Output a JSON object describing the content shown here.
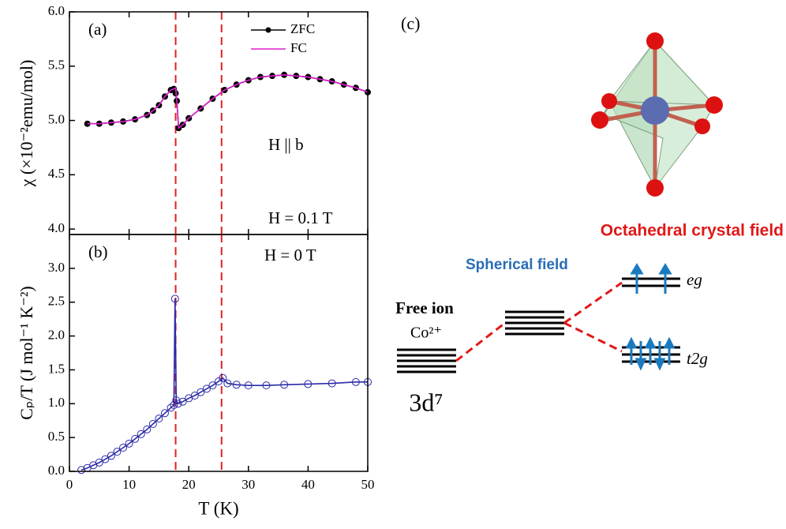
{
  "chart_data": [
    {
      "type": "line",
      "panel_label": "(a)",
      "y_label": "χ (×10⁻²emu/mol)",
      "annotations": [
        "H || b",
        "H = 0.1 T"
      ],
      "x": [
        3,
        5,
        7,
        9,
        11,
        13,
        14,
        15,
        16,
        17,
        17.5,
        17.8,
        18,
        18.3,
        19,
        20,
        22,
        24,
        26,
        28,
        30,
        32,
        34,
        36,
        38,
        40,
        42,
        44,
        46,
        48,
        50
      ],
      "series": [
        {
          "name": "ZFC",
          "color": "#000000",
          "marker": true,
          "values": [
            4.97,
            4.97,
            4.98,
            4.99,
            5.01,
            5.05,
            5.09,
            5.14,
            5.22,
            5.28,
            5.29,
            5.25,
            5.18,
            4.93,
            4.96,
            5.02,
            5.11,
            5.2,
            5.28,
            5.33,
            5.37,
            5.4,
            5.41,
            5.42,
            5.41,
            5.4,
            5.38,
            5.36,
            5.33,
            5.3,
            5.26
          ]
        },
        {
          "name": "FC",
          "color": "#e01fd0",
          "marker": false,
          "values": [
            4.97,
            4.97,
            4.98,
            4.99,
            5.01,
            5.05,
            5.09,
            5.14,
            5.22,
            5.28,
            5.29,
            5.3,
            5.18,
            4.93,
            4.96,
            5.02,
            5.11,
            5.2,
            5.28,
            5.33,
            5.37,
            5.4,
            5.41,
            5.42,
            5.41,
            5.4,
            5.38,
            5.36,
            5.33,
            5.3,
            5.26
          ]
        }
      ],
      "xlim": [
        0,
        50
      ],
      "xticks": [
        0,
        10,
        20,
        30,
        40,
        50
      ],
      "ylim": [
        3.95,
        6.0
      ],
      "yticks": [
        {
          "value": 4,
          "label": "4.0"
        },
        4.5,
        {
          "value": 5,
          "label": "5.0"
        },
        5.5,
        {
          "value": 6,
          "label": "6.0"
        }
      ],
      "vlines": [
        17.8,
        25.5
      ],
      "vline_color": "#e02020"
    },
    {
      "type": "scatter",
      "panel_label": "(b)",
      "y_label": "Cₚ/T (J mol⁻¹ K⁻²)",
      "x_label": "T (K)",
      "annotations": [
        "H = 0 T"
      ],
      "x": [
        2,
        3,
        4,
        5,
        6,
        7,
        8,
        9,
        10,
        11,
        12,
        13,
        14,
        15,
        16,
        17,
        17.5,
        17.7,
        17.9,
        18.2,
        19,
        20,
        21,
        22,
        23,
        24,
        25,
        25.7,
        26.5,
        28,
        30,
        33,
        36,
        40,
        44,
        48,
        50
      ],
      "series": [
        {
          "color": "#2a2aa8",
          "values": [
            0.02,
            0.05,
            0.09,
            0.13,
            0.18,
            0.23,
            0.29,
            0.35,
            0.41,
            0.48,
            0.55,
            0.62,
            0.7,
            0.78,
            0.86,
            0.94,
            0.98,
            2.55,
            1.05,
            1.0,
            1.03,
            1.08,
            1.12,
            1.17,
            1.22,
            1.27,
            1.33,
            1.38,
            1.3,
            1.28,
            1.27,
            1.27,
            1.28,
            1.29,
            1.3,
            1.32,
            1.32
          ]
        }
      ],
      "xlim": [
        0,
        50
      ],
      "xticks": [
        0,
        10,
        20,
        30,
        40,
        50
      ],
      "ylim": [
        0,
        3.5
      ],
      "yticks": [
        {
          "value": 0,
          "label": "0.0"
        },
        0.5,
        {
          "value": 1,
          "label": "1.0"
        },
        1.5,
        {
          "value": 2,
          "label": "2.0"
        },
        2.5,
        {
          "value": 3,
          "label": "3.0"
        }
      ],
      "vlines": [
        17.8,
        25.5
      ],
      "vline_color": "#e02020"
    }
  ],
  "diagram": {
    "panel_label": "(c)",
    "title": "Octahedral crystal field",
    "spherical": "Spherical field",
    "free_ion": "Free ion",
    "ion": "Co²⁺",
    "config": "3d⁷",
    "upper": "eg",
    "lower": "t2g"
  }
}
